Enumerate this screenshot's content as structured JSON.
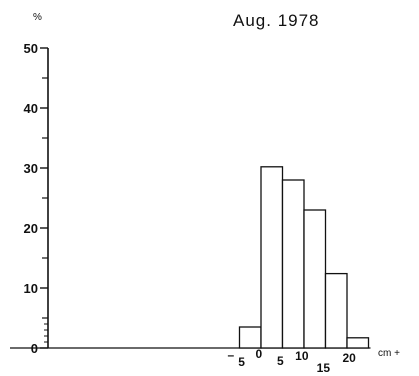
{
  "chart_data": {
    "type": "bar",
    "title": "Aug. 1978",
    "ylabel": "%",
    "xlabel": "cm +",
    "ylim": [
      0,
      50
    ],
    "y_ticks": [
      "0",
      "10",
      "20",
      "30",
      "40",
      "50"
    ],
    "x_tick_labels": [
      "–",
      "5",
      "0",
      "5",
      "10",
      "15",
      "20"
    ],
    "x_range": [
      -40,
      25
    ],
    "bin_width": 5,
    "bins": [
      {
        "from": -5,
        "to": 0,
        "value": 3.5
      },
      {
        "from": 0,
        "to": 5,
        "value": 30.2
      },
      {
        "from": 5,
        "to": 10,
        "value": 28
      },
      {
        "from": 10,
        "to": 15,
        "value": 23
      },
      {
        "from": 15,
        "to": 20,
        "value": 12.4
      },
      {
        "from": 20,
        "to": 25,
        "value": 1.7
      }
    ],
    "grid": false,
    "legend": "none"
  }
}
